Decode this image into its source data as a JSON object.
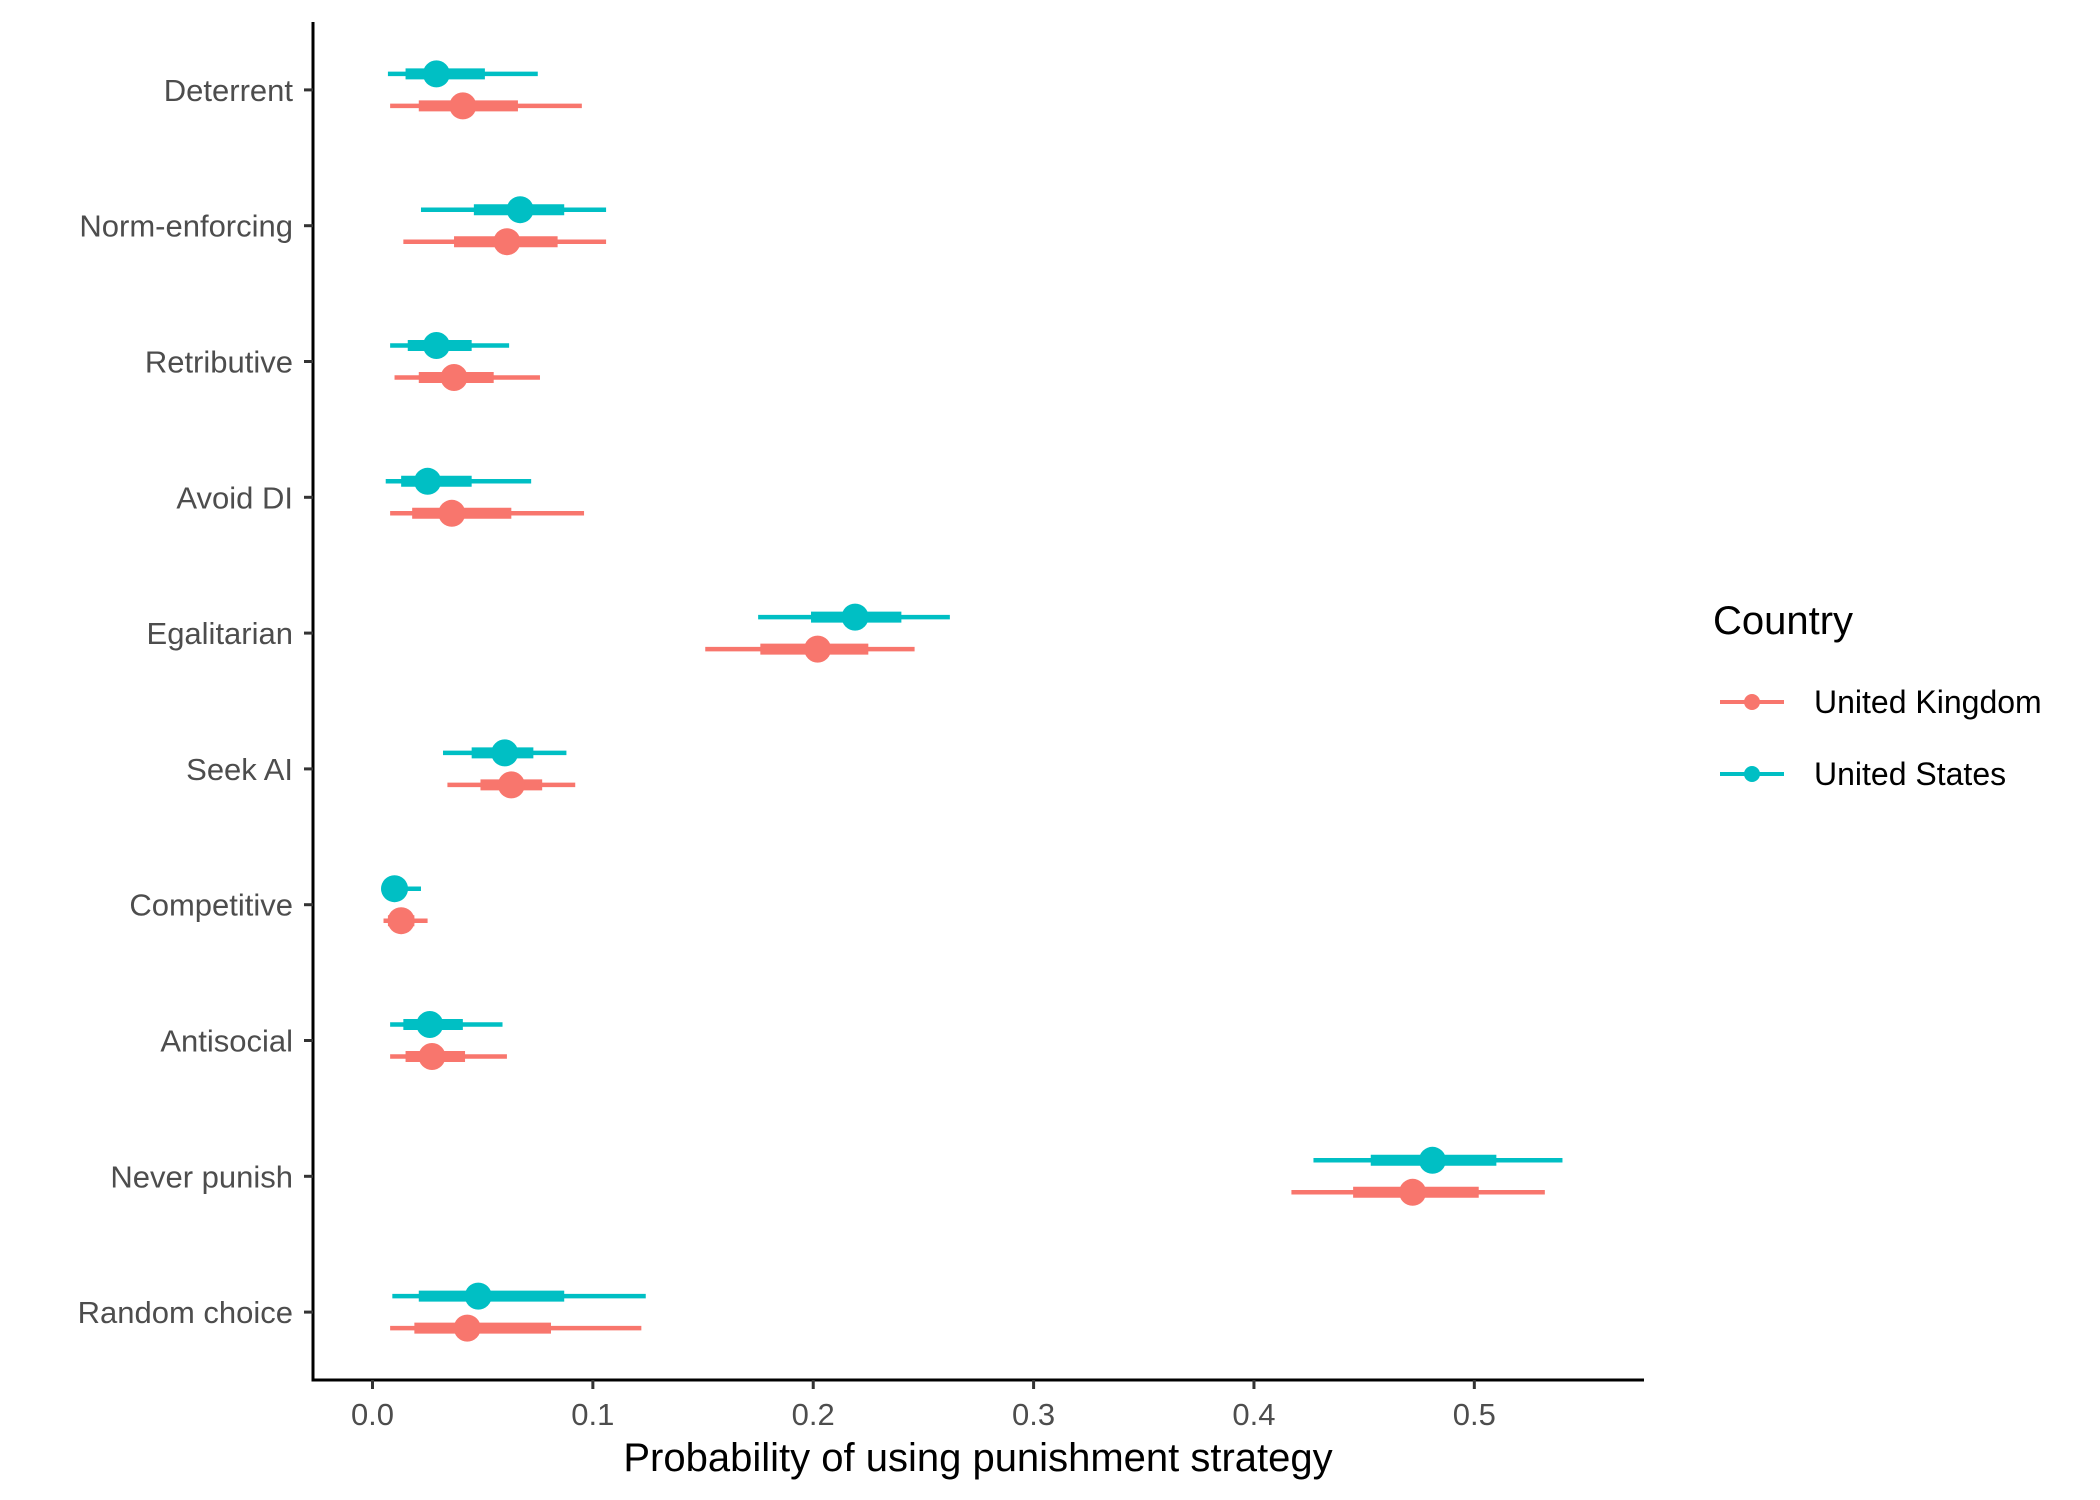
{
  "chart_data": {
    "type": "scatter",
    "subtype": "point-interval",
    "title": "",
    "xlabel": "Probability of using punishment strategy",
    "ylabel": "",
    "xlim": [
      -0.027,
      0.577
    ],
    "x_ticks": [
      0.0,
      0.1,
      0.2,
      0.3,
      0.4,
      0.5
    ],
    "x_tick_labels": [
      "0.0",
      "0.1",
      "0.2",
      "0.3",
      "0.4",
      "0.5"
    ],
    "categories": [
      "Deterrent",
      "Norm-enforcing",
      "Retributive",
      "Avoid DI",
      "Egalitarian",
      "Seek AI",
      "Competitive",
      "Antisocial",
      "Never punish",
      "Random choice"
    ],
    "grid": false,
    "legend": {
      "title": "Country",
      "placement": "right"
    },
    "series": [
      {
        "name": "United Kingdom",
        "color": "#F8766D",
        "points": [
          {
            "category": "Deterrent",
            "x": 0.041,
            "inner": [
              0.021,
              0.066
            ],
            "outer": [
              0.008,
              0.095
            ]
          },
          {
            "category": "Norm-enforcing",
            "x": 0.061,
            "inner": [
              0.037,
              0.084
            ],
            "outer": [
              0.014,
              0.106
            ]
          },
          {
            "category": "Retributive",
            "x": 0.037,
            "inner": [
              0.021,
              0.055
            ],
            "outer": [
              0.01,
              0.076
            ]
          },
          {
            "category": "Avoid DI",
            "x": 0.036,
            "inner": [
              0.018,
              0.063
            ],
            "outer": [
              0.008,
              0.096
            ]
          },
          {
            "category": "Egalitarian",
            "x": 0.202,
            "inner": [
              0.176,
              0.225
            ],
            "outer": [
              0.151,
              0.246
            ]
          },
          {
            "category": "Seek AI",
            "x": 0.063,
            "inner": [
              0.049,
              0.077
            ],
            "outer": [
              0.034,
              0.092
            ]
          },
          {
            "category": "Competitive",
            "x": 0.013,
            "inner": [
              0.007,
              0.019
            ],
            "outer": [
              0.005,
              0.025
            ]
          },
          {
            "category": "Antisocial",
            "x": 0.027,
            "inner": [
              0.015,
              0.042
            ],
            "outer": [
              0.008,
              0.061
            ]
          },
          {
            "category": "Never punish",
            "x": 0.472,
            "inner": [
              0.445,
              0.502
            ],
            "outer": [
              0.417,
              0.532
            ]
          },
          {
            "category": "Random choice",
            "x": 0.043,
            "inner": [
              0.019,
              0.081
            ],
            "outer": [
              0.008,
              0.122
            ]
          }
        ]
      },
      {
        "name": "United States",
        "color": "#00BFC4",
        "points": [
          {
            "category": "Deterrent",
            "x": 0.029,
            "inner": [
              0.015,
              0.051
            ],
            "outer": [
              0.007,
              0.075
            ]
          },
          {
            "category": "Norm-enforcing",
            "x": 0.067,
            "inner": [
              0.046,
              0.087
            ],
            "outer": [
              0.022,
              0.106
            ]
          },
          {
            "category": "Retributive",
            "x": 0.029,
            "inner": [
              0.016,
              0.045
            ],
            "outer": [
              0.008,
              0.062
            ]
          },
          {
            "category": "Avoid DI",
            "x": 0.025,
            "inner": [
              0.013,
              0.045
            ],
            "outer": [
              0.006,
              0.072
            ]
          },
          {
            "category": "Egalitarian",
            "x": 0.219,
            "inner": [
              0.199,
              0.24
            ],
            "outer": [
              0.175,
              0.262
            ]
          },
          {
            "category": "Seek AI",
            "x": 0.06,
            "inner": [
              0.045,
              0.073
            ],
            "outer": [
              0.032,
              0.088
            ]
          },
          {
            "category": "Competitive",
            "x": 0.01,
            "inner": [
              0.006,
              0.015
            ],
            "outer": [
              0.004,
              0.022
            ]
          },
          {
            "category": "Antisocial",
            "x": 0.026,
            "inner": [
              0.014,
              0.041
            ],
            "outer": [
              0.008,
              0.059
            ]
          },
          {
            "category": "Never punish",
            "x": 0.481,
            "inner": [
              0.453,
              0.51
            ],
            "outer": [
              0.427,
              0.54
            ]
          },
          {
            "category": "Random choice",
            "x": 0.048,
            "inner": [
              0.021,
              0.087
            ],
            "outer": [
              0.009,
              0.124
            ]
          }
        ]
      }
    ]
  }
}
